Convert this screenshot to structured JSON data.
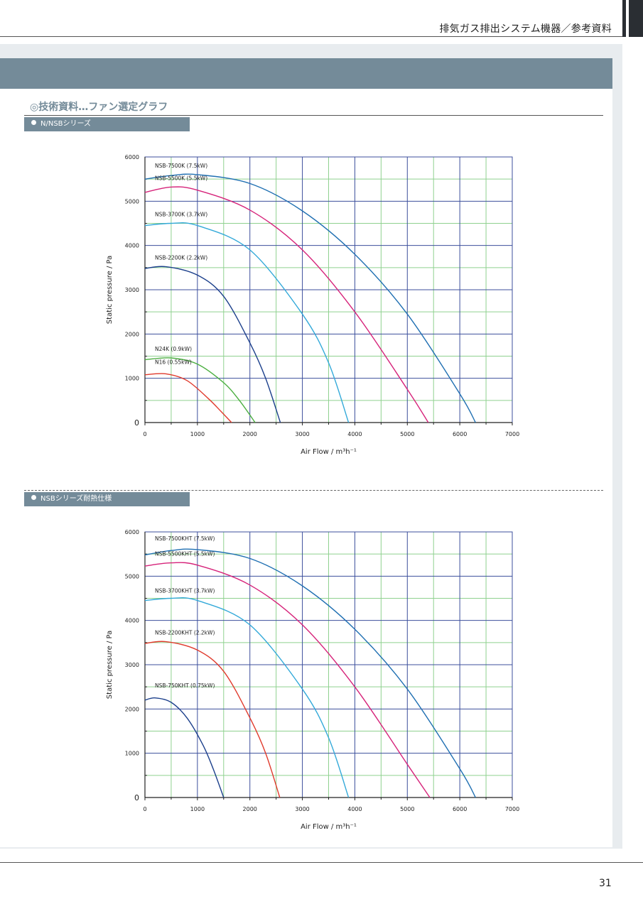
{
  "header": {
    "title": "排気ガス排出システム機器／参考資料"
  },
  "section": {
    "title": "◎技術資料…ファン選定グラフ"
  },
  "footer": {
    "page_number": "31"
  },
  "chart_data": [
    {
      "type": "line",
      "tag": "N/NSBシリーズ",
      "xlabel": "Air Flow / m³h⁻¹",
      "ylabel": "Static  pressure / Pa",
      "xlim": [
        0,
        7000
      ],
      "ylim": [
        0,
        6000
      ],
      "xticks": [
        "0",
        "1000",
        "2000",
        "3000",
        "4000",
        "5000",
        "6000",
        "7000"
      ],
      "yticks": [
        "0",
        "1000",
        "2000",
        "3000",
        "4000",
        "5000",
        "6000"
      ],
      "grid": true,
      "series": [
        {
          "name": "NSB-7500K (7.5kW)",
          "color": "#1f6fb2",
          "x": [
            0,
            500,
            1000,
            2000,
            3000,
            4000,
            5000,
            6000,
            6300
          ],
          "y": [
            5500,
            5580,
            5600,
            5400,
            4780,
            3800,
            2450,
            650,
            0
          ]
        },
        {
          "name": "NSB-5500K (5.5kW)",
          "color": "#d6237a",
          "x": [
            0,
            500,
            1000,
            2000,
            3000,
            4000,
            5000,
            5400
          ],
          "y": [
            5200,
            5320,
            5250,
            4800,
            3900,
            2500,
            750,
            0
          ]
        },
        {
          "name": "NSB-3700K (3.7kW)",
          "color": "#33a9d9",
          "x": [
            0,
            500,
            1000,
            2000,
            3000,
            3500,
            3880
          ],
          "y": [
            4450,
            4500,
            4450,
            3900,
            2450,
            1350,
            0
          ]
        },
        {
          "name": "NSB-2200K (2.2kW)",
          "color": "#1b3f8b",
          "x": [
            0,
            400,
            1000,
            1500,
            2000,
            2300,
            2580
          ],
          "y": [
            3480,
            3520,
            3330,
            2850,
            1800,
            1000,
            0
          ]
        },
        {
          "name": "N24K (0.9kW)",
          "color": "#4aae3f",
          "x": [
            0,
            500,
            1000,
            1500,
            1800,
            2100
          ],
          "y": [
            1420,
            1460,
            1320,
            900,
            500,
            0
          ]
        },
        {
          "name": "N16 (0.55kW)",
          "color": "#e03a2c",
          "x": [
            0,
            400,
            800,
            1200,
            1450,
            1650
          ],
          "y": [
            1080,
            1100,
            950,
            550,
            250,
            0
          ]
        }
      ]
    },
    {
      "type": "line",
      "tag": "NSBシリーズ耐熱仕様",
      "xlabel": "Air Flow / m³h⁻¹",
      "ylabel": "Static  pressure / Pa",
      "xlim": [
        0,
        7000
      ],
      "ylim": [
        0,
        6000
      ],
      "xticks": [
        "0",
        "1000",
        "2000",
        "3000",
        "4000",
        "5000",
        "6000",
        "7000"
      ],
      "yticks": [
        "0",
        "1000",
        "2000",
        "3000",
        "4000",
        "5000",
        "6000"
      ],
      "grid": true,
      "series": [
        {
          "name": "NSB-7500KHT (7.5kW)",
          "color": "#1f6fb2",
          "x": [
            0,
            500,
            1000,
            2000,
            3000,
            4000,
            5000,
            6000,
            6300
          ],
          "y": [
            5480,
            5580,
            5600,
            5400,
            4780,
            3800,
            2450,
            650,
            0
          ]
        },
        {
          "name": "NSB-5500KHT (5.5kW)",
          "color": "#d6237a",
          "x": [
            0,
            500,
            1000,
            2000,
            3000,
            4000,
            5000,
            5430
          ],
          "y": [
            5230,
            5300,
            5250,
            4800,
            3900,
            2500,
            750,
            0
          ]
        },
        {
          "name": "NSB-3700KHT (3.7kW)",
          "color": "#33a9d9",
          "x": [
            0,
            500,
            1000,
            2000,
            3000,
            3500,
            3880
          ],
          "y": [
            4450,
            4500,
            4450,
            3900,
            2450,
            1350,
            0
          ]
        },
        {
          "name": "NSB-2200KHT (2.2kW)",
          "color": "#e03a2c",
          "x": [
            0,
            400,
            1000,
            1500,
            2000,
            2300,
            2570
          ],
          "y": [
            3480,
            3520,
            3330,
            2850,
            1800,
            1000,
            0
          ]
        },
        {
          "name": "NSB-750KHT (0.75kW)",
          "color": "#1b3f8b",
          "x": [
            0,
            200,
            500,
            800,
            1100,
            1300,
            1500
          ],
          "y": [
            2200,
            2250,
            2150,
            1800,
            1200,
            650,
            0
          ]
        }
      ]
    }
  ]
}
